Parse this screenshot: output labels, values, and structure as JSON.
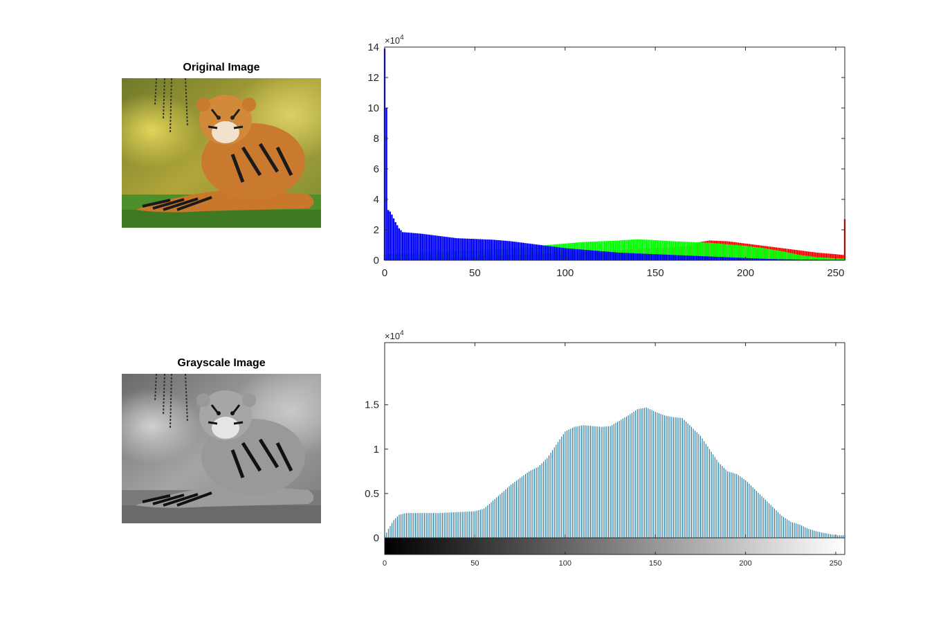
{
  "panels": {
    "original": {
      "title": "Original Image"
    },
    "grayscale": {
      "title": "Grayscale Image"
    }
  },
  "chart_data": [
    {
      "type": "bar",
      "xlim": [
        0,
        255
      ],
      "ylim": [
        0,
        14
      ],
      "multiplier": "×10^4",
      "xticks": [
        0,
        50,
        100,
        150,
        200,
        250
      ],
      "yticks": [
        0,
        2,
        4,
        6,
        8,
        10,
        12,
        14
      ],
      "grid": false,
      "series": [
        {
          "color": "#ff0000",
          "points": [
            [
              0,
              0.1
            ],
            [
              20,
              0.15
            ],
            [
              40,
              0.2
            ],
            [
              60,
              0.3
            ],
            [
              80,
              0.4
            ],
            [
              100,
              0.5
            ],
            [
              120,
              0.6
            ],
            [
              140,
              0.75
            ],
            [
              160,
              0.85
            ],
            [
              170,
              1.0
            ],
            [
              175,
              1.2
            ],
            [
              180,
              1.3
            ],
            [
              190,
              1.25
            ],
            [
              200,
              1.1
            ],
            [
              210,
              0.95
            ],
            [
              220,
              0.8
            ],
            [
              230,
              0.65
            ],
            [
              240,
              0.5
            ],
            [
              250,
              0.4
            ],
            [
              254,
              0.35
            ],
            [
              255,
              2.7
            ]
          ]
        },
        {
          "color": "#00ff00",
          "points": [
            [
              0,
              0.4
            ],
            [
              20,
              0.5
            ],
            [
              40,
              0.6
            ],
            [
              60,
              0.7
            ],
            [
              80,
              0.85
            ],
            [
              90,
              1.0
            ],
            [
              100,
              1.1
            ],
            [
              110,
              1.2
            ],
            [
              120,
              1.25
            ],
            [
              130,
              1.3
            ],
            [
              140,
              1.38
            ],
            [
              150,
              1.32
            ],
            [
              160,
              1.25
            ],
            [
              170,
              1.2
            ],
            [
              180,
              1.15
            ],
            [
              190,
              1.05
            ],
            [
              200,
              0.95
            ],
            [
              210,
              0.8
            ],
            [
              220,
              0.6
            ],
            [
              230,
              0.35
            ],
            [
              240,
              0.2
            ],
            [
              255,
              0.1
            ]
          ]
        },
        {
          "color": "#0000ff",
          "points": [
            [
              0,
              13.9
            ],
            [
              1,
              10.0
            ],
            [
              2,
              3.3
            ],
            [
              3,
              3.2
            ],
            [
              4,
              3.0
            ],
            [
              6,
              2.5
            ],
            [
              8,
              2.1
            ],
            [
              10,
              1.85
            ],
            [
              20,
              1.75
            ],
            [
              30,
              1.6
            ],
            [
              40,
              1.45
            ],
            [
              50,
              1.4
            ],
            [
              60,
              1.35
            ],
            [
              70,
              1.25
            ],
            [
              80,
              1.1
            ],
            [
              90,
              0.95
            ],
            [
              100,
              0.8
            ],
            [
              110,
              0.7
            ],
            [
              120,
              0.6
            ],
            [
              130,
              0.5
            ],
            [
              140,
              0.45
            ],
            [
              150,
              0.4
            ],
            [
              160,
              0.35
            ],
            [
              170,
              0.3
            ],
            [
              180,
              0.25
            ],
            [
              190,
              0.2
            ],
            [
              200,
              0.15
            ],
            [
              210,
              0.1
            ],
            [
              220,
              0.07
            ],
            [
              230,
              0.05
            ],
            [
              255,
              0.03
            ]
          ]
        }
      ]
    },
    {
      "type": "bar",
      "xlim": [
        0,
        255
      ],
      "ylim": [
        0,
        2.2
      ],
      "multiplier": "×10^4",
      "xticks": [
        0,
        50,
        100,
        150,
        200,
        250
      ],
      "yticks": [
        0,
        0.5,
        1,
        1.5
      ],
      "colorbar": {
        "range": [
          0,
          255
        ],
        "ticks": [
          0,
          50,
          100,
          150,
          200,
          250
        ]
      },
      "grid": false,
      "series": [
        {
          "color": "#1f77a0",
          "points": [
            [
              0,
              0.02
            ],
            [
              2,
              0.1
            ],
            [
              5,
              0.2
            ],
            [
              8,
              0.26
            ],
            [
              12,
              0.28
            ],
            [
              20,
              0.28
            ],
            [
              30,
              0.28
            ],
            [
              40,
              0.29
            ],
            [
              50,
              0.3
            ],
            [
              55,
              0.33
            ],
            [
              60,
              0.42
            ],
            [
              70,
              0.6
            ],
            [
              80,
              0.75
            ],
            [
              85,
              0.8
            ],
            [
              90,
              0.9
            ],
            [
              95,
              1.05
            ],
            [
              100,
              1.2
            ],
            [
              105,
              1.25
            ],
            [
              110,
              1.27
            ],
            [
              115,
              1.26
            ],
            [
              120,
              1.25
            ],
            [
              125,
              1.26
            ],
            [
              130,
              1.32
            ],
            [
              135,
              1.38
            ],
            [
              140,
              1.45
            ],
            [
              145,
              1.47
            ],
            [
              150,
              1.42
            ],
            [
              155,
              1.38
            ],
            [
              160,
              1.36
            ],
            [
              165,
              1.35
            ],
            [
              170,
              1.25
            ],
            [
              175,
              1.15
            ],
            [
              180,
              1.0
            ],
            [
              185,
              0.85
            ],
            [
              190,
              0.75
            ],
            [
              195,
              0.72
            ],
            [
              200,
              0.65
            ],
            [
              205,
              0.55
            ],
            [
              210,
              0.45
            ],
            [
              215,
              0.35
            ],
            [
              220,
              0.25
            ],
            [
              225,
              0.18
            ],
            [
              230,
              0.15
            ],
            [
              235,
              0.1
            ],
            [
              240,
              0.07
            ],
            [
              245,
              0.05
            ],
            [
              250,
              0.03
            ],
            [
              255,
              0.03
            ]
          ]
        }
      ]
    }
  ]
}
